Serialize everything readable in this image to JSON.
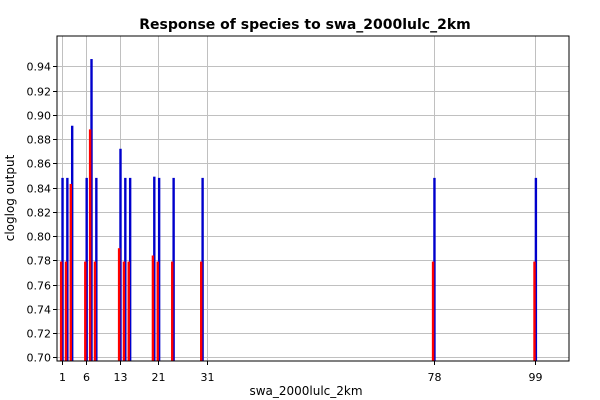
{
  "chart_data": {
    "type": "bar",
    "title": "Response of species to swa_2000lulc_2km",
    "xlabel": "swa_2000lulc_2km",
    "ylabel": "cloglog output",
    "xlim": [
      0,
      106
    ],
    "ylim": [
      0.697,
      0.965
    ],
    "x_ticks": [
      1,
      6,
      13,
      21,
      31,
      78,
      99
    ],
    "y_ticks": [
      0.7,
      0.72,
      0.74,
      0.76,
      0.78,
      0.8,
      0.82,
      0.84,
      0.86,
      0.88,
      0.9,
      0.92,
      0.94
    ],
    "grid": true,
    "series": [
      {
        "color": "#0000cc",
        "x": [
          1,
          2,
          3,
          6,
          7,
          8,
          13,
          14,
          15,
          20,
          21,
          24,
          30,
          78,
          99
        ],
        "values": [
          0.848,
          0.848,
          0.891,
          0.848,
          0.946,
          0.848,
          0.872,
          0.848,
          0.848,
          0.849,
          0.848,
          0.848,
          0.848,
          0.848,
          0.848
        ]
      },
      {
        "color": "#ff0000",
        "x": [
          1,
          2,
          3,
          6,
          7,
          8,
          13,
          14,
          15,
          20,
          21,
          24,
          30,
          78,
          99
        ],
        "values": [
          0.779,
          0.779,
          0.843,
          0.779,
          0.888,
          0.779,
          0.79,
          0.779,
          0.779,
          0.784,
          0.779,
          0.779,
          0.779,
          0.779,
          0.779
        ]
      }
    ]
  }
}
